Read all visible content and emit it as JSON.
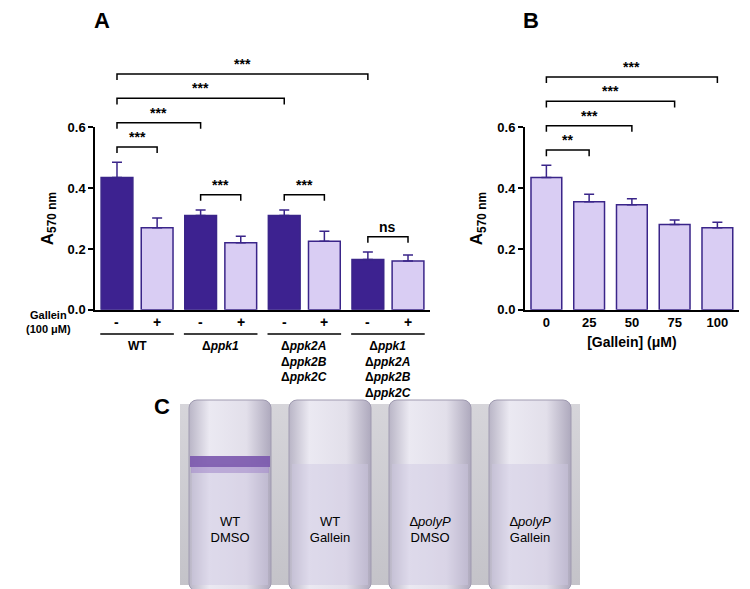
{
  "chart_data": [
    {
      "type": "bar",
      "title": "A",
      "y_label": {
        "text": "A",
        "subscript": "570 nm"
      },
      "categories": [
        "WT",
        "Δppk1",
        "Δppk2A\nΔppk2B\nΔppk2C",
        "Δppk1\nΔppk2A\nΔppk2B\nΔppk2C"
      ],
      "treatment_label": "Gallein\n(100 μM)",
      "series": [
        {
          "name": "-",
          "color": "#3d2290",
          "values": [
            0.435,
            0.31,
            0.31,
            0.165
          ],
          "errors": [
            0.05,
            0.018,
            0.018,
            0.025
          ]
        },
        {
          "name": "+",
          "color": "#d9cdf3",
          "values": [
            0.27,
            0.22,
            0.225,
            0.16
          ],
          "errors": [
            0.032,
            0.022,
            0.033,
            0.02
          ]
        }
      ],
      "ylim": [
        0,
        0.6
      ],
      "yticks": [
        {
          "value": 0,
          "label": "0.0"
        },
        0.2,
        0.4,
        0.6
      ],
      "significance": [
        {
          "a": [
            0,
            0
          ],
          "b": [
            0,
            1
          ],
          "label": "***"
        },
        {
          "a": [
            1,
            0
          ],
          "b": [
            1,
            1
          ],
          "label": "***"
        },
        {
          "a": [
            2,
            0
          ],
          "b": [
            2,
            1
          ],
          "label": "***"
        },
        {
          "a": [
            3,
            0
          ],
          "b": [
            3,
            1
          ],
          "label": "ns"
        },
        {
          "a": [
            0,
            0
          ],
          "b": [
            1,
            0
          ],
          "label": "***"
        },
        {
          "a": [
            0,
            0
          ],
          "b": [
            2,
            0
          ],
          "label": "***"
        },
        {
          "a": [
            0,
            0
          ],
          "b": [
            3,
            0
          ],
          "label": "***"
        }
      ]
    },
    {
      "type": "bar",
      "title": "B",
      "y_label": {
        "text": "A",
        "subscript": "570 nm"
      },
      "x_label": "[Gallein] (μM)",
      "categories": [
        "0",
        "25",
        "50",
        "75",
        "100"
      ],
      "series": [
        {
          "name": "Gallein",
          "color": "#d9cdf3",
          "values": [
            0.435,
            0.355,
            0.345,
            0.28,
            0.27
          ],
          "errors": [
            0.04,
            0.025,
            0.02,
            0.015,
            0.018
          ]
        }
      ],
      "ylim": [
        0,
        0.6
      ],
      "yticks": [
        {
          "value": 0,
          "label": "0.0"
        },
        0.2,
        0.4,
        0.6
      ],
      "significance": [
        {
          "a": [
            0,
            0
          ],
          "b": [
            1,
            0
          ],
          "label": "**"
        },
        {
          "a": [
            0,
            0
          ],
          "b": [
            2,
            0
          ],
          "label": "***"
        },
        {
          "a": [
            0,
            0
          ],
          "b": [
            3,
            0
          ],
          "label": "***"
        },
        {
          "a": [
            0,
            0
          ],
          "b": [
            4,
            0
          ],
          "label": "***"
        }
      ]
    }
  ],
  "photo": {
    "title": "C",
    "tubes": [
      {
        "label": [
          "WT",
          "DMSO"
        ],
        "ring": true
      },
      {
        "label": [
          "WT",
          "Gallein"
        ],
        "ring": false
      },
      {
        "label": [
          "ΔpolyP",
          "DMSO"
        ],
        "ring": false
      },
      {
        "label": [
          "ΔpolyP",
          "Gallein"
        ],
        "ring": false
      }
    ]
  }
}
